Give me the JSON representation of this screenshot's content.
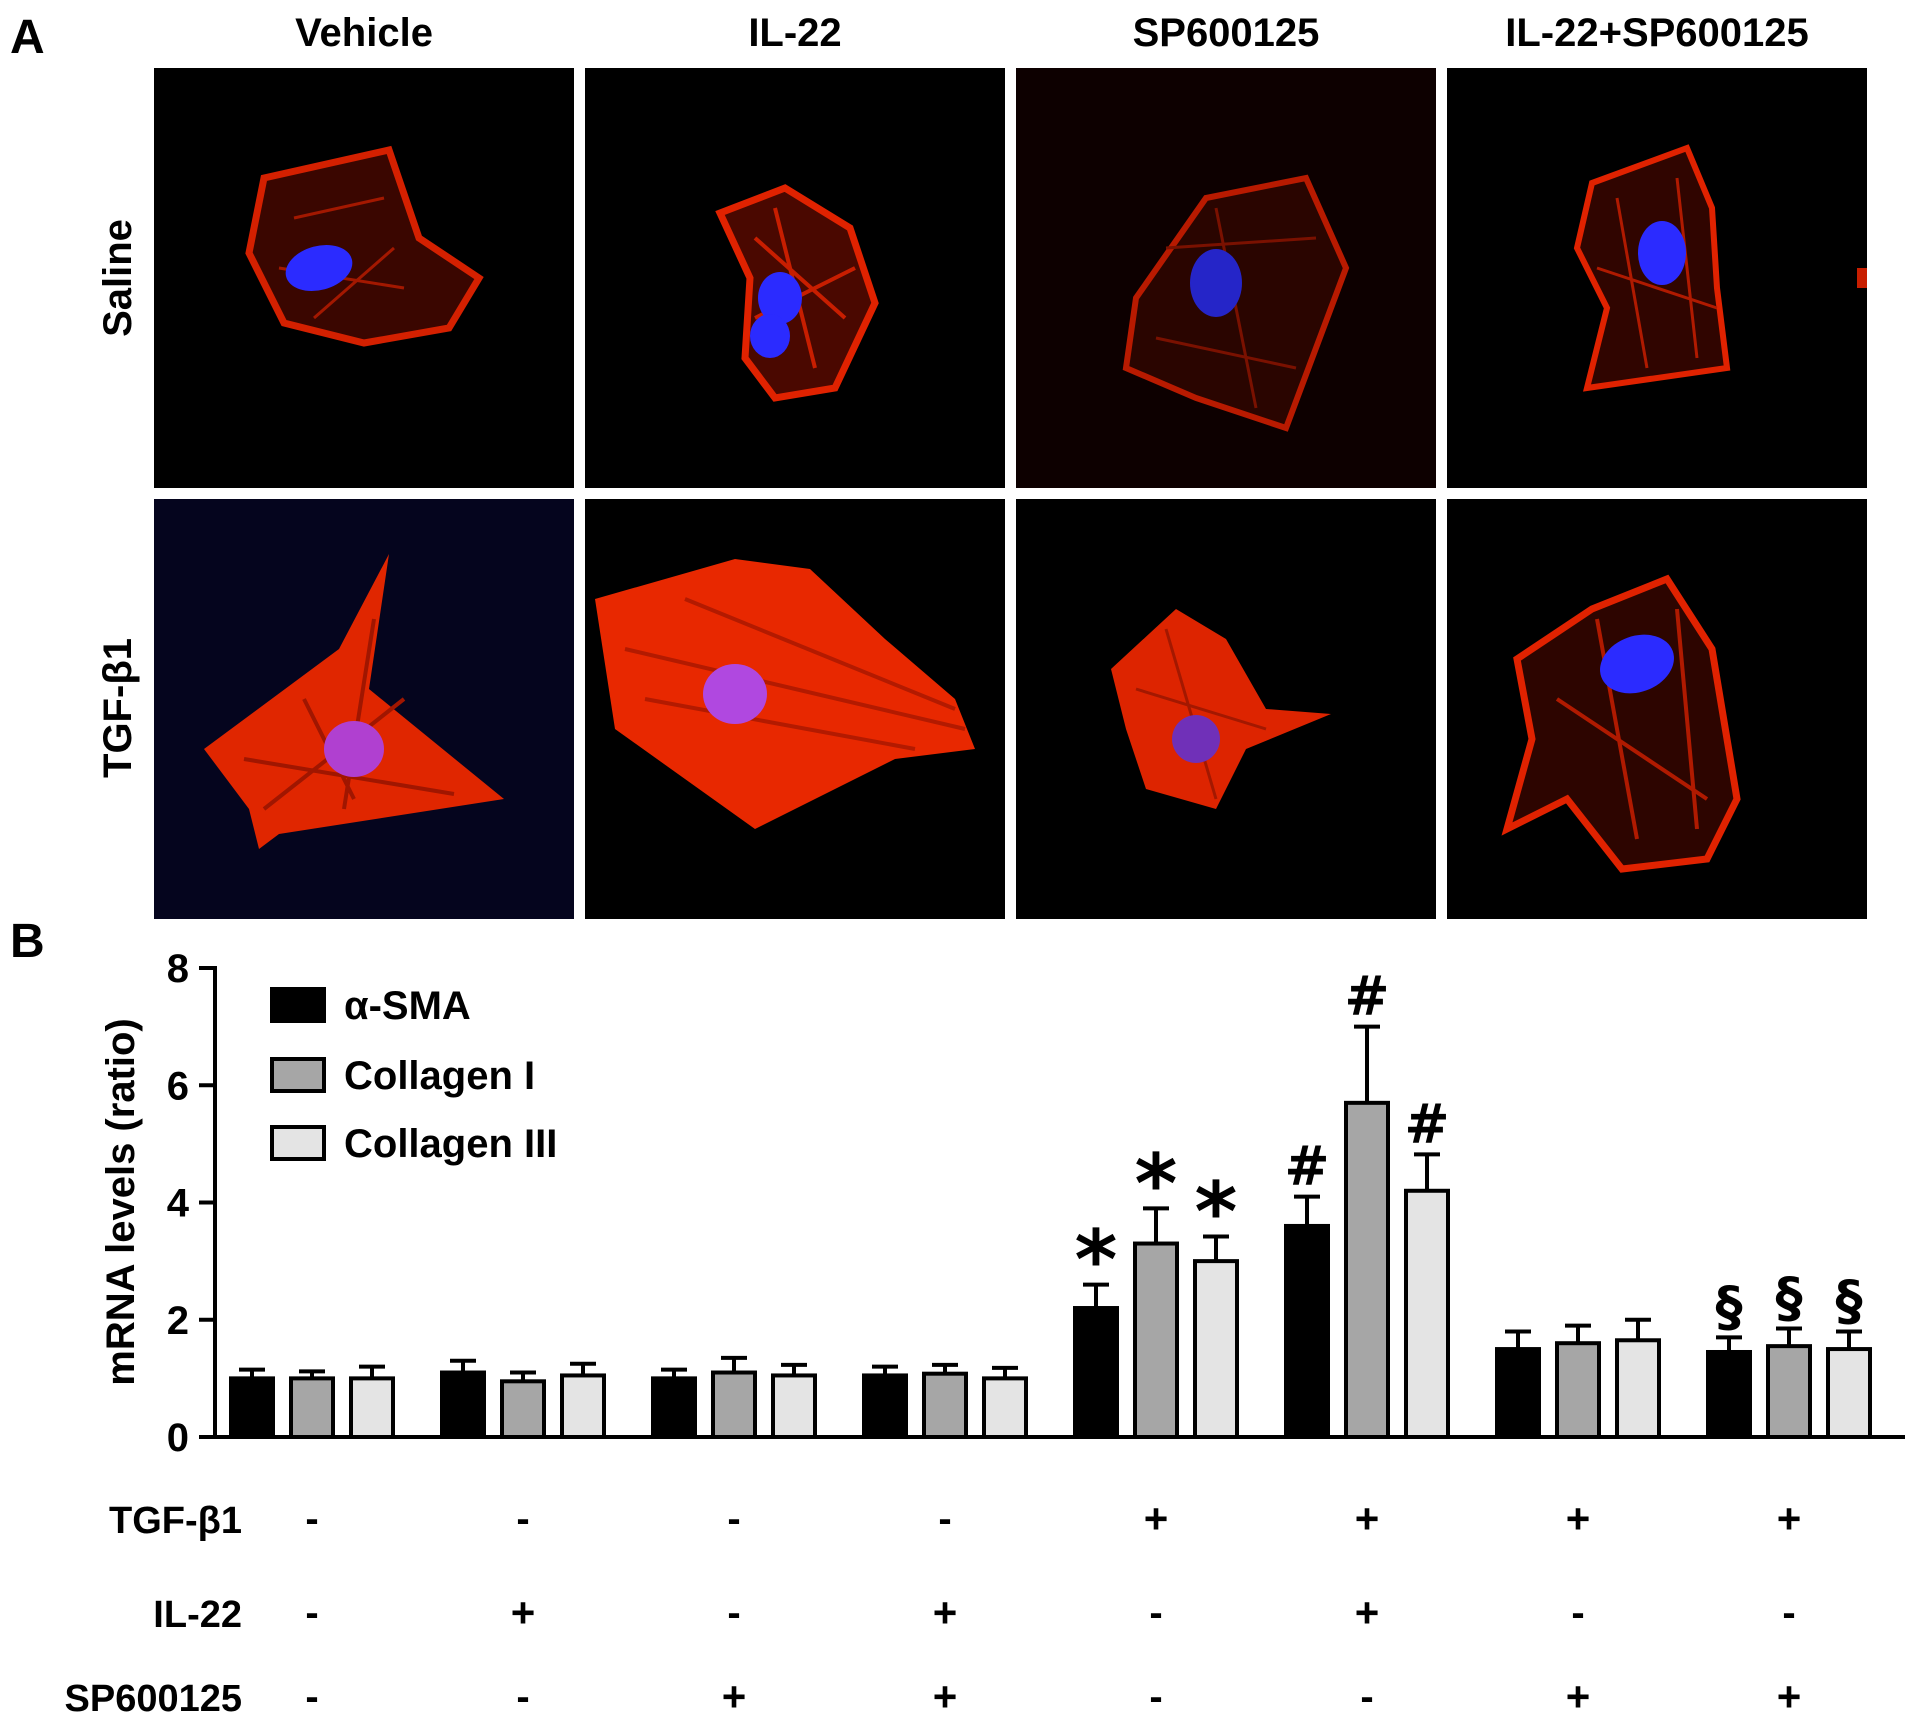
{
  "panel_a": {
    "letter": "A",
    "column_labels": [
      "Vehicle",
      "IL-22",
      "SP600125",
      "IL-22+SP600125"
    ],
    "row_labels": [
      "Saline",
      "TGF-β1"
    ],
    "stain_colors": {
      "actin": "#ff2a00",
      "nucleus": "#2a2aff",
      "background": "#000000"
    }
  },
  "panel_b": {
    "letter": "B",
    "conditions": [
      {
        "label": "TGF-β1",
        "values": [
          "-",
          "-",
          "-",
          "-",
          "+",
          "+",
          "+",
          "+"
        ]
      },
      {
        "label": "IL-22",
        "values": [
          "-",
          "+",
          "-",
          "+",
          "-",
          "+",
          "-",
          "-"
        ]
      },
      {
        "label": "SP600125",
        "values": [
          "-",
          "-",
          "+",
          "+",
          "-",
          "-",
          "+",
          "+"
        ]
      }
    ]
  },
  "chart_data": {
    "type": "bar",
    "ylabel": "mRNA levels (ratio)",
    "xlabel": "",
    "ylim": [
      0,
      8
    ],
    "yticks": [
      0,
      2,
      4,
      6,
      8
    ],
    "legend_position": "top-left",
    "groups": 8,
    "series": [
      {
        "name": "α-SMA",
        "color": "#000000",
        "values": [
          1.0,
          1.1,
          1.0,
          1.05,
          2.2,
          3.6,
          1.5,
          1.45
        ],
        "errors": [
          0.15,
          0.2,
          0.15,
          0.15,
          0.4,
          0.5,
          0.3,
          0.25
        ],
        "annotations": [
          "",
          "",
          "",
          "",
          "*",
          "#",
          "",
          "§"
        ]
      },
      {
        "name": "Collagen I",
        "color": "#a6a6a6",
        "values": [
          1.0,
          0.95,
          1.1,
          1.08,
          3.3,
          5.7,
          1.6,
          1.55
        ],
        "errors": [
          0.12,
          0.15,
          0.25,
          0.15,
          0.6,
          1.3,
          0.3,
          0.3
        ],
        "annotations": [
          "",
          "",
          "",
          "",
          "*",
          "#",
          "",
          "§"
        ]
      },
      {
        "name": "Collagen III",
        "color": "#e4e4e4",
        "values": [
          1.0,
          1.05,
          1.05,
          1.0,
          3.0,
          4.2,
          1.65,
          1.5
        ],
        "errors": [
          0.2,
          0.2,
          0.18,
          0.18,
          0.42,
          0.62,
          0.35,
          0.3
        ],
        "annotations": [
          "",
          "",
          "",
          "",
          "*",
          "#",
          "",
          "§"
        ]
      }
    ]
  }
}
